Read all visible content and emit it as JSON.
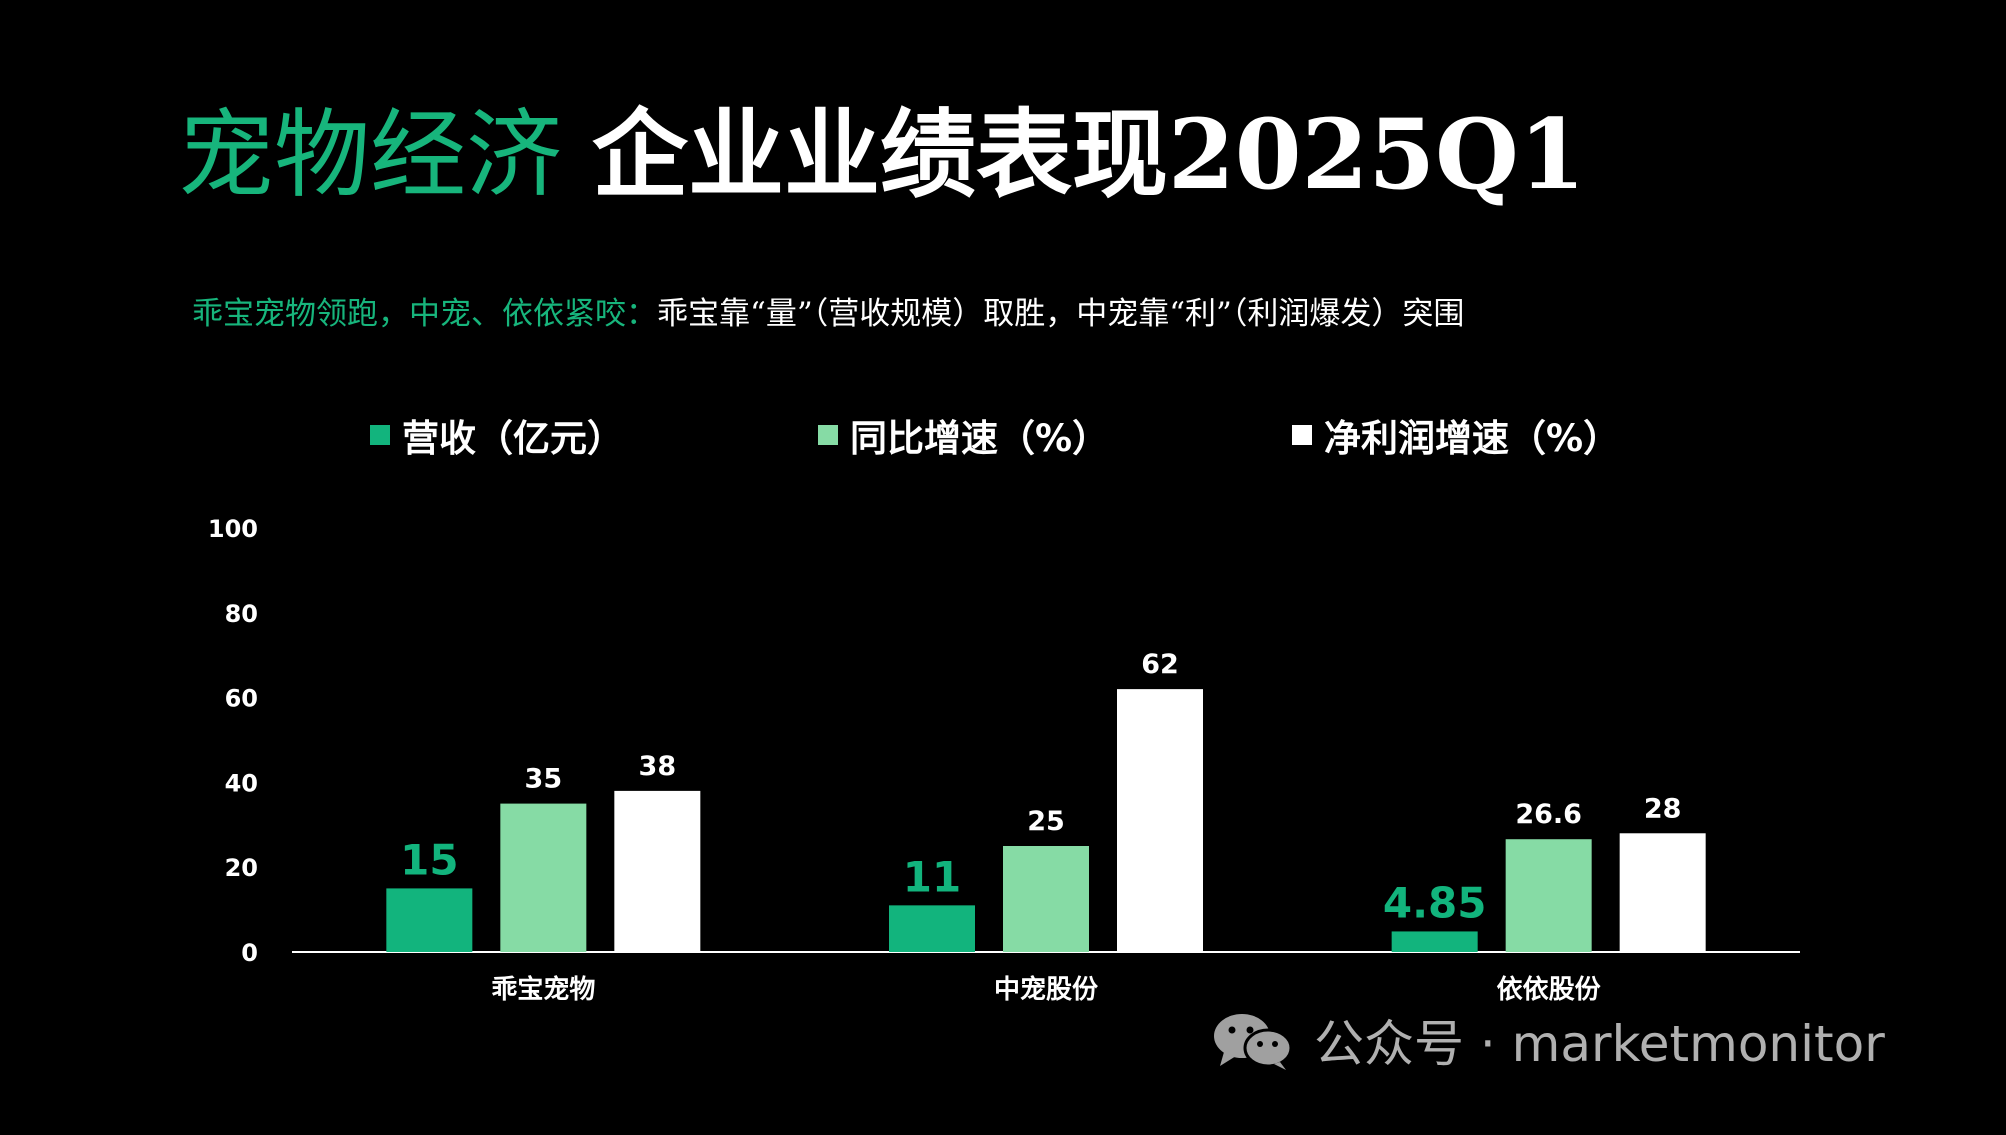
{
  "title": {
    "part1": "宠物经济",
    "part2": "企业业绩表现2025Q1"
  },
  "subtitle": {
    "highlight": "乖宝宠物领跑，中宠、依依紧咬：",
    "rest": "乖宝靠“量”（营收规模）取胜，中宠靠“利”（利润爆发）突围"
  },
  "colors": {
    "revenue": "#12b47d",
    "yoy": "#86dba5",
    "profit": "#ffffff",
    "title_green": "#17b57c"
  },
  "chart_data": {
    "type": "bar",
    "categories": [
      "乖宝宠物",
      "中宠股份",
      "依依股份"
    ],
    "series": [
      {
        "name": "营收（亿元）",
        "values": [
          15,
          11,
          4.85
        ],
        "labels": [
          "15",
          "11",
          "4.85"
        ]
      },
      {
        "name": "同比增速（%）",
        "values": [
          35,
          25,
          26.6
        ],
        "labels": [
          "35",
          "25",
          "26.6"
        ]
      },
      {
        "name": "净利润增速（%）",
        "values": [
          38,
          62,
          28
        ],
        "labels": [
          "38",
          "62",
          "28"
        ]
      }
    ],
    "ylim": [
      0,
      100
    ],
    "yticks": [
      "0",
      "20",
      "40",
      "60",
      "80",
      "100"
    ],
    "grid": false,
    "legend_position": "top"
  },
  "watermark": {
    "text": "公众号 · marketmonitor",
    "icon": "wechat-icon"
  }
}
